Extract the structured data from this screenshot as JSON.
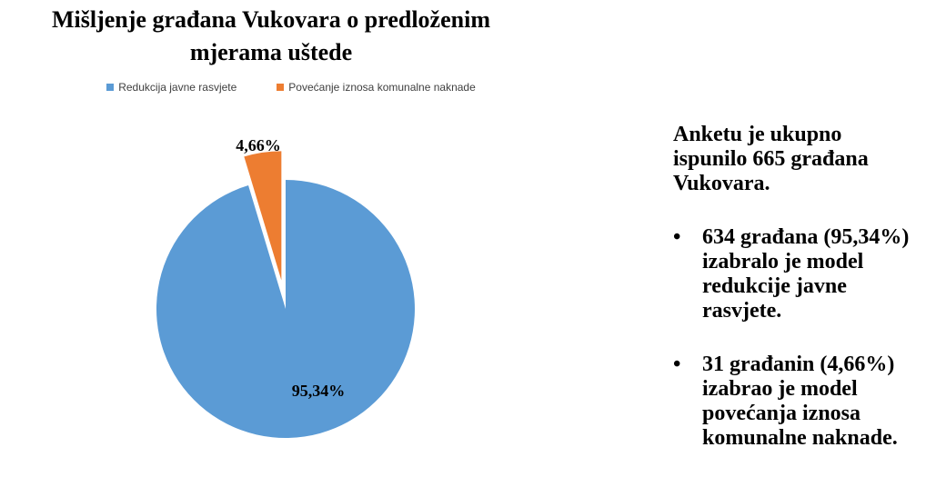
{
  "page": {
    "background": "#ffffff"
  },
  "title": {
    "lines": [
      "Mišljenje građana Vukovara o predloženim",
      "mjerama uštede"
    ],
    "full": "Mišljenje građana Vukovara o predloženim mjerama uštede"
  },
  "chart_data": {
    "type": "pie",
    "title": "Mišljenje građana Vukovara o predloženim mjerama uštede",
    "legend_position": "top",
    "start_angle_deg": 0,
    "direction": "clockwise",
    "total_respondents": 665,
    "slices": [
      {
        "label": "Redukcija javne rasvjete",
        "value_pct": 95.34,
        "count": 634,
        "display_pct": "95,34%",
        "color": "#5B9BD5",
        "exploded": false
      },
      {
        "label": "Povećanje iznosa komunalne naknade",
        "value_pct": 4.66,
        "count": 31,
        "display_pct": "4,66%",
        "color": "#ED7D31",
        "exploded": true
      }
    ]
  },
  "side_panel": {
    "intro": "Anketu je ukupno ispunilo 665 građana Vukovara.",
    "bullet_char": "•",
    "bullets": [
      "634 građana (95,34%) izabralo je model redukcije javne rasvjete.",
      "31 građanin (4,66%) izabrao je model povećanja iznosa komunalne naknade."
    ]
  }
}
